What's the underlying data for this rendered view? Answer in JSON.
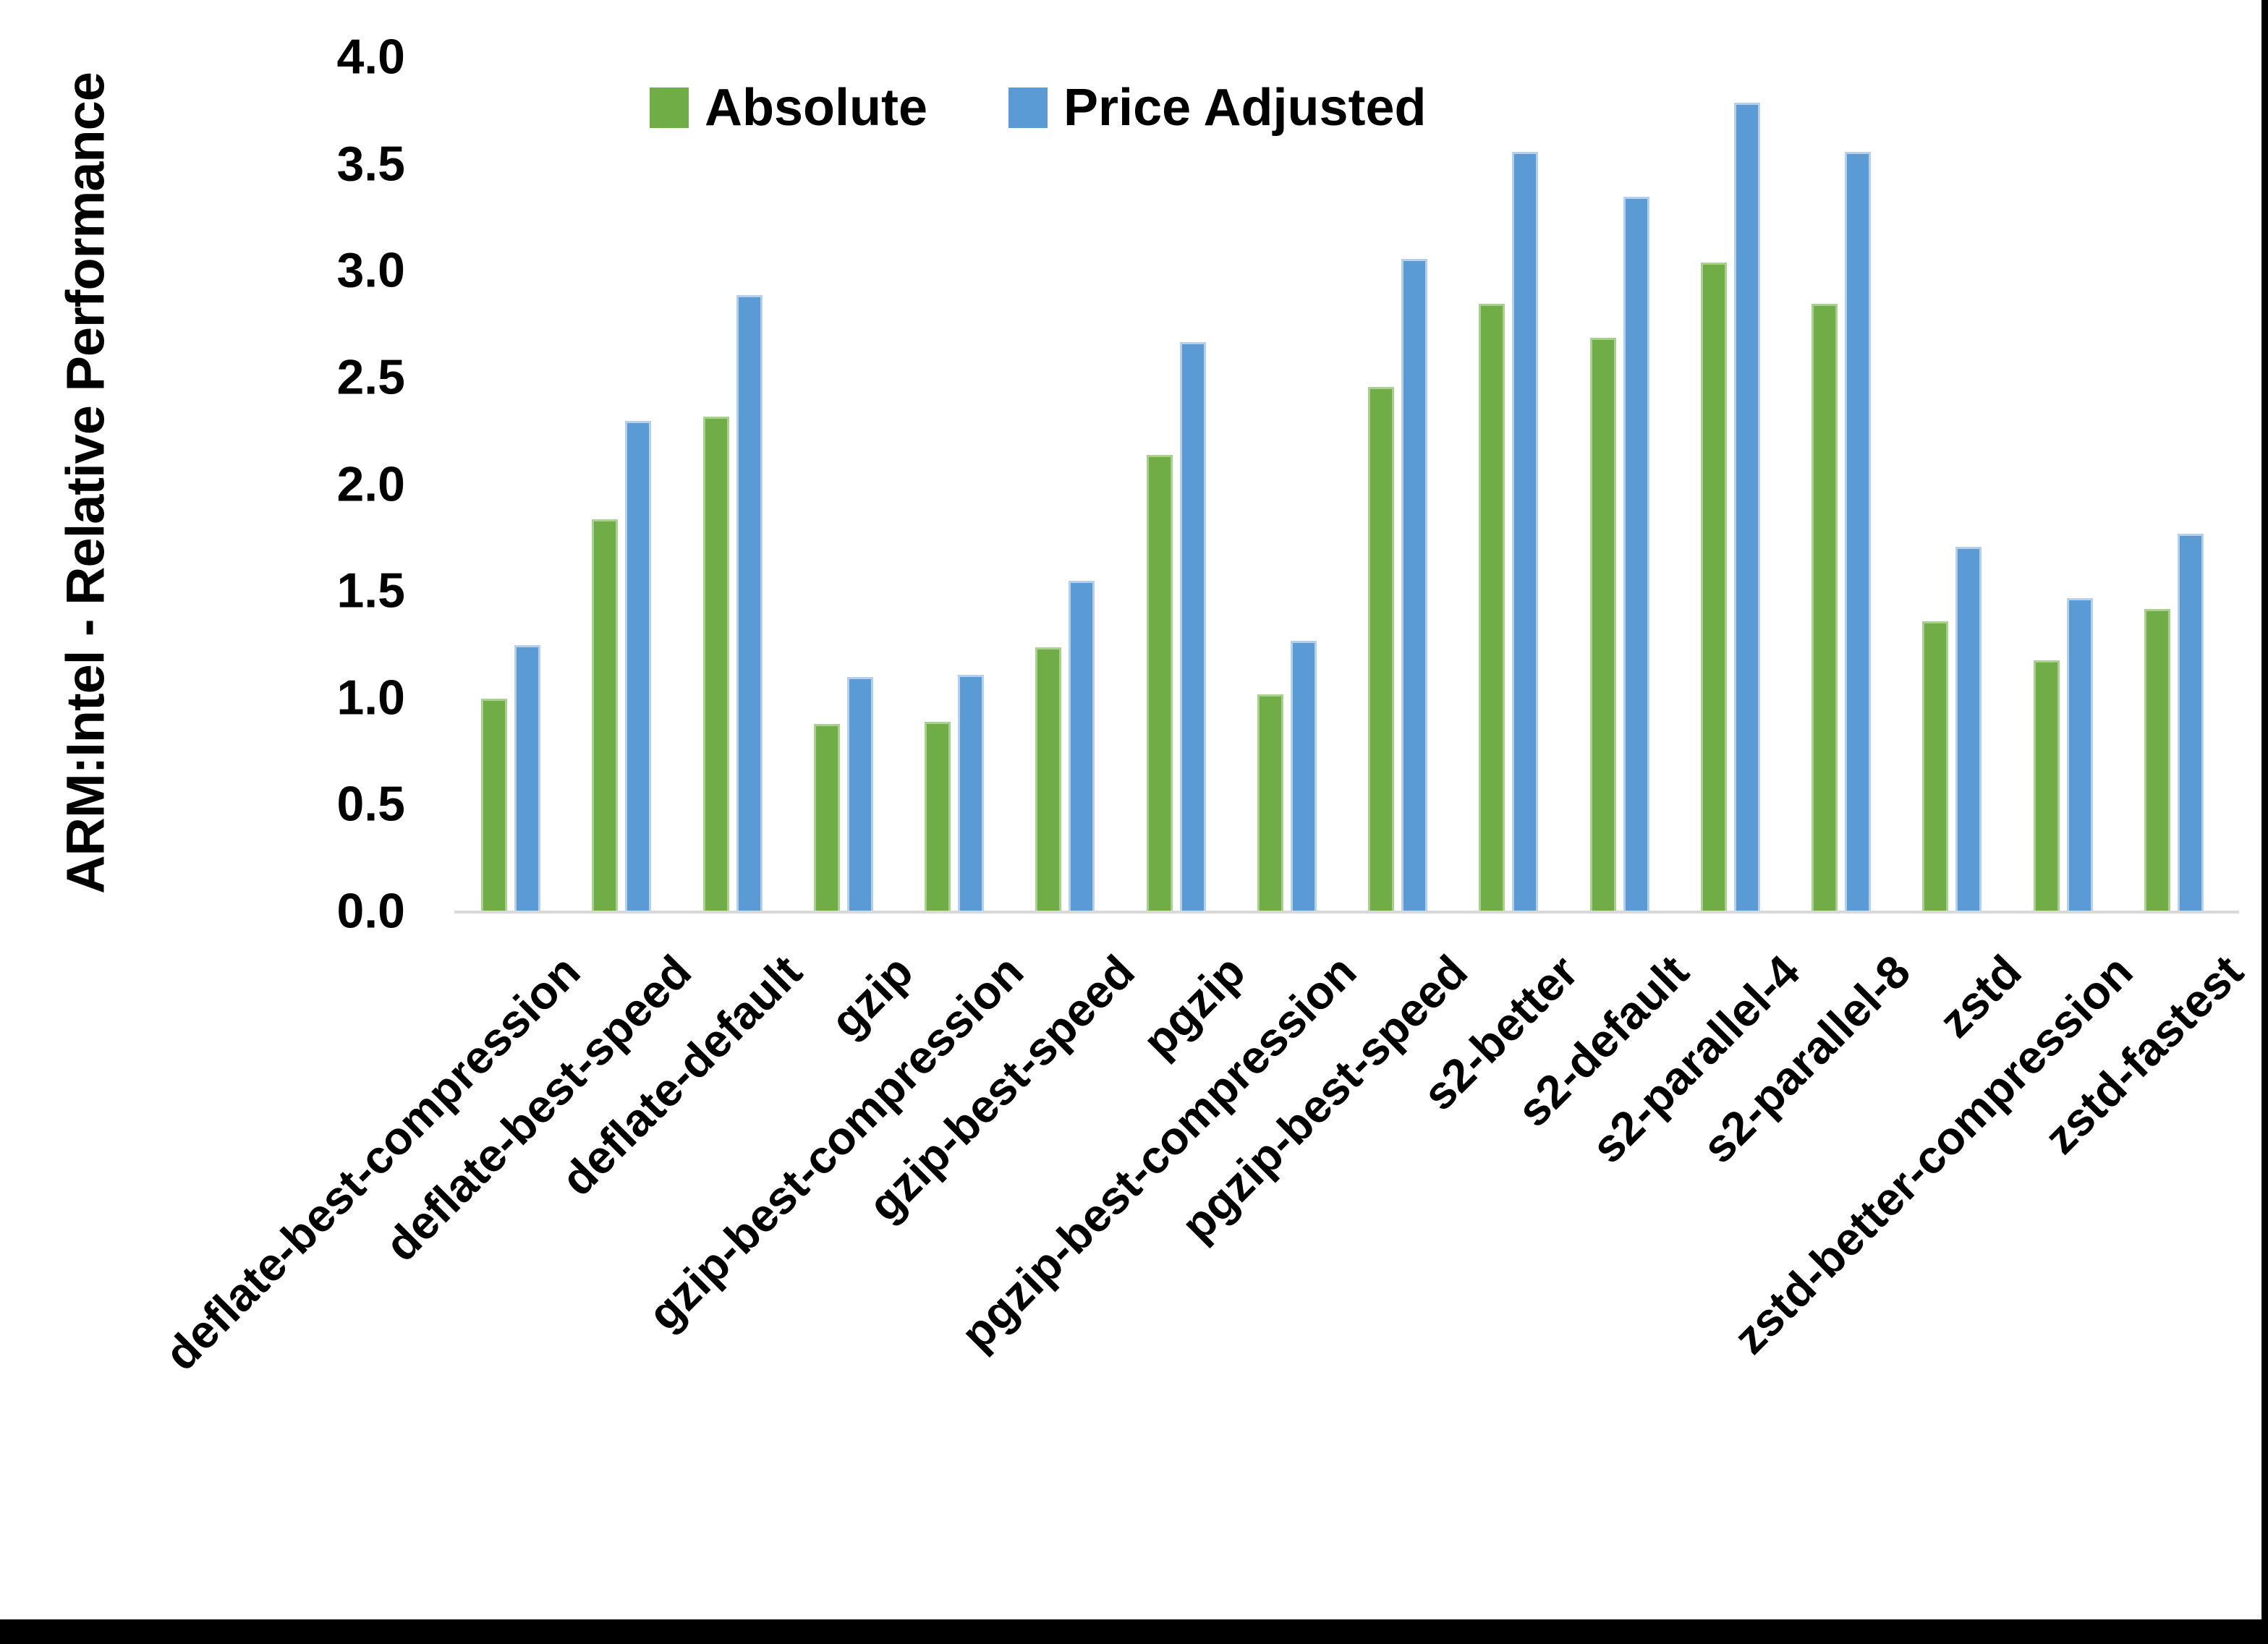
{
  "figure": {
    "y_axis_title": "ARM:Intel - Relative Performance",
    "background_color": "#FFFFFF",
    "border_color": "#000000",
    "axis_line_color": "#D9D9D9"
  },
  "chart_data": {
    "type": "bar",
    "title": "",
    "xlabel": "",
    "ylabel": "ARM:Intel - Relative Performance",
    "ylim": [
      0.0,
      4.0
    ],
    "y_tick_step": 0.5,
    "y_tick_labels": [
      "0.0",
      "0.5",
      "1.0",
      "1.5",
      "2.0",
      "2.5",
      "3.0",
      "3.5",
      "4.0"
    ],
    "grid": false,
    "legend_position": "top-center",
    "categories": [
      "deflate-best-compression",
      "deflate-best-speed",
      "deflate-default",
      "gzip",
      "gzip-best-compression",
      "gzip-best-speed",
      "pgzip",
      "pgzip-best-compression",
      "pgzip-best-speed",
      "s2-better",
      "s2-default",
      "s2-parallel-4",
      "s2-parallel-8",
      "zstd",
      "zstd-better-compression",
      "zstd-fastest"
    ],
    "series": [
      {
        "name": "Absolute",
        "color": "#70AD47",
        "edge_color": "#A9D18E",
        "values": [
          1.0,
          1.84,
          2.32,
          0.88,
          0.89,
          1.24,
          2.14,
          1.02,
          2.46,
          2.85,
          2.69,
          3.04,
          2.85,
          1.36,
          1.18,
          1.42
        ]
      },
      {
        "name": "Price Adjusted",
        "color": "#5B9BD5",
        "edge_color": "#B4D0EC",
        "values": [
          1.25,
          2.3,
          2.89,
          1.1,
          1.11,
          1.55,
          2.67,
          1.27,
          3.06,
          3.56,
          3.35,
          3.79,
          3.56,
          1.71,
          1.47,
          1.77
        ]
      }
    ]
  }
}
